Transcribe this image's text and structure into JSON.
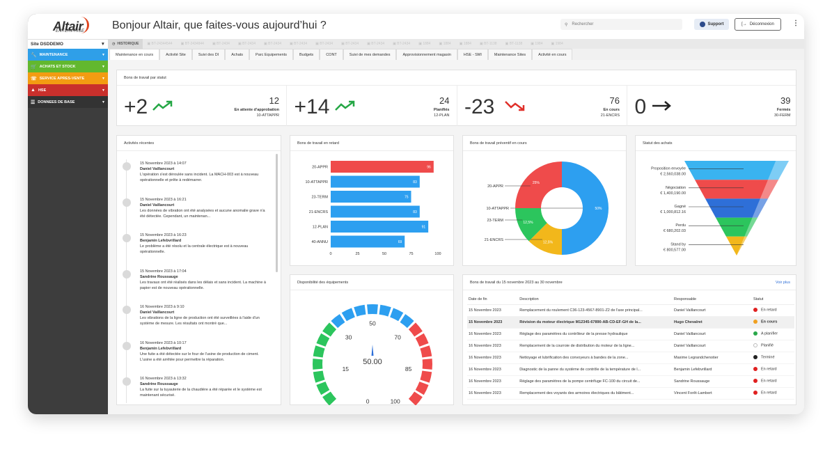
{
  "logo": {
    "name": "Altair",
    "sub": "ENTERPRISE"
  },
  "sidebar": {
    "site": "Site DSDDEMO",
    "items": [
      {
        "label": "MAINTENANCE",
        "color": "#2f9fe8",
        "icon": "wrench-icon"
      },
      {
        "label": "ACHATS ET STOCK",
        "color": "#62b82e",
        "icon": "cart-icon"
      },
      {
        "label": "SERVICE APRES-VENTE",
        "color": "#f39c12",
        "icon": "phone-icon"
      },
      {
        "label": "HSE",
        "color": "#c9302c",
        "icon": "warning-icon"
      },
      {
        "label": "DONNEES DE BASE",
        "color": "#333333",
        "icon": "database-icon"
      }
    ]
  },
  "header": {
    "title": "Bonjour Altair, que faites-vous aujourd’hui ?",
    "search_placeholder": "Rechercher",
    "support": "Support",
    "logout": "Déconnexion"
  },
  "history": {
    "label": "HISTORIQUE",
    "items": [
      "BT-24344544",
      "BT-2434844",
      "BT-2434",
      "BT-2434",
      "BT-2434",
      "BT-2434",
      "BT-2434",
      "BT-2434",
      "BT-2434",
      "BT-2434",
      "1884",
      "1884",
      "1884",
      "BT-1138",
      "BT-1138",
      "1984",
      "1984"
    ]
  },
  "tabs": [
    "Maintenance en cours",
    "Activité Site",
    "Suivi des DI",
    "Achats",
    "Parc Equipements",
    "Budgets",
    "CONT",
    "Suivi de mes demandes",
    "Approvisionnement magasin",
    "HSE - SMI",
    "Maintenance Sites",
    "Activité en cours"
  ],
  "status": {
    "title": "Bons de travail par statut",
    "items": [
      {
        "delta": "+2",
        "trend": "up",
        "count": "12",
        "label": "En attente d'approbation",
        "code": "10-ATTAPPR"
      },
      {
        "delta": "+14",
        "trend": "up",
        "count": "24",
        "label": "Planifiés",
        "code": "12-PLAN"
      },
      {
        "delta": "-23",
        "trend": "down",
        "count": "76",
        "label": "En cours",
        "code": "21-ENCRS"
      },
      {
        "delta": "0",
        "trend": "flat",
        "count": "39",
        "label": "Fermés",
        "code": "30-FERM"
      }
    ]
  },
  "activities": {
    "title": "Activités récentes",
    "items": [
      {
        "date": "15 Novembre 2023 à 14:07",
        "name": "Daniel Vaillancourt",
        "text": "L'opération s'est déroulée sans incident. La MACH-003 est à nouveau opérationnelle et prête à redémarrer."
      },
      {
        "date": "15 Novembre 2023 à 16:21",
        "name": "Daniel Vaillancourt",
        "text": "Les données de vibration ont été analysées et aucune anomalie grave n'a été détectée. Cependant, un maintenan..."
      },
      {
        "date": "15 Novembre 2023 à 16:23",
        "name": "Benjamin Lefebvrillard",
        "text": "Le problème a été résolu et la centrale électrique est à nouveau opérationnelle."
      },
      {
        "date": "15 Novembre 2023 à 17:04",
        "name": "Sandrine Roussauge",
        "text": "Les travaux ont été réalisés dans les délais et sans incident. La machine à papier est de nouveau opérationnelle."
      },
      {
        "date": "16 Novembre 2023 à 9:10",
        "name": "Daniel Vaillancourt",
        "text": "Les vibrations de la ligne de production ont été surveillées à l'aide d'un système de mesure. Les résultats ont montré que..."
      },
      {
        "date": "16 Novembre 2023 à 10:17",
        "name": "Benjamin Lefebvrillard",
        "text": "Une fuite a été détectée sur le four de l'usine de production de ciment. L'usine a été arrêtée pour permettre la réparation."
      },
      {
        "date": "16 Novembre 2023 à 13:32",
        "name": "Sandrine Roussauge",
        "text": "La fuite sur la tuyauterie de la chaudière a été réparée et le système est maintenant sécurisé."
      }
    ]
  },
  "chart_data": [
    {
      "type": "bar",
      "title": "Bons de travail en retard",
      "categories": [
        "20-APPR",
        "10-ATTAPPR",
        "23-TERM",
        "21-ENCRS",
        "12-PLAN",
        "40-ANNU"
      ],
      "values": [
        96,
        83,
        75,
        83,
        91,
        69
      ],
      "colors": [
        "#ef4b4b",
        "#2d9ff0",
        "#2d9ff0",
        "#2d9ff0",
        "#2d9ff0",
        "#2d9ff0"
      ],
      "xticks": [
        0,
        25,
        50,
        75,
        100
      ],
      "xlim": [
        0,
        100
      ]
    },
    {
      "type": "pie",
      "title": "Bons de travail préventif en cours",
      "slices": [
        {
          "label": "10-ATTAPPR",
          "value": 50,
          "text": "50%",
          "color": "#2d9ff0"
        },
        {
          "label": "21-ENCRS",
          "value": 12.5,
          "text": "12,5%",
          "color": "#f2b71b"
        },
        {
          "label": "23-TERM",
          "value": 12.5,
          "text": "12,5%",
          "color": "#2cc55d"
        },
        {
          "label": "20-APPR",
          "value": 25,
          "text": "25%",
          "color": "#ef4b4b"
        }
      ]
    },
    {
      "type": "funnel",
      "title": "Statut des achats",
      "stages": [
        {
          "label": "Proposition envoyée",
          "value": "€ 2,560,038.00",
          "color": "#3ab3f0"
        },
        {
          "label": "Négociation",
          "value": "€ 1,400,190.00",
          "color": "#ef4b4b"
        },
        {
          "label": "Gagné",
          "value": "€ 1,000,812.16",
          "color": "#2e6fd8"
        },
        {
          "label": "Perdu",
          "value": "€ 680,202.03",
          "color": "#2cc55d"
        },
        {
          "label": "Stand by",
          "value": "€ 800,577.00",
          "color": "#f2b71b"
        }
      ]
    },
    {
      "type": "gauge",
      "title": "Disponibilité des équipements",
      "value": 50,
      "value_label": "50.00",
      "min": 0,
      "max": 100,
      "ticks": [
        "0",
        "15",
        "30",
        "50",
        "70",
        "85",
        "100"
      ]
    }
  ],
  "work_orders": {
    "title": "Bons de travail du 15 novembre 2023 au 30 novembre",
    "link": "Voir plus",
    "columns": [
      "Date de fin",
      "Description",
      "Responsable",
      "Statut"
    ],
    "rows": [
      {
        "date": "15 Novembre 2023",
        "desc": "Remplacement du roulement C36-123-4567-8901-Z2 de l'axe principal...",
        "resp": "Daniel Vaillancourt",
        "status": "En retard",
        "color": "#e02020"
      },
      {
        "date": "15 Novembre 2023",
        "desc": "Révision du moteur électrique M12345-67890-AB-CD-EF-GH de la...",
        "resp": "Hugo Chevalret",
        "status": "En cours",
        "color": "#f0a020",
        "highlight": true
      },
      {
        "date": "16 Novembre 2023",
        "desc": "Réglage des paramètres du contrôleur de la presse hydraulique",
        "resp": "Daniel Vaillancourt",
        "status": "A planifier",
        "color": "#2aa84a"
      },
      {
        "date": "16 Novembre 2023",
        "desc": "Remplacement de la courroie de distribution du moteur de la ligne...",
        "resp": "Daniel Vaillancourt",
        "status": "Planifié",
        "color": "#ffffff"
      },
      {
        "date": "16 Novembre 2023",
        "desc": "Nettoyage et lubrification des convoyeurs à bandes de la zone...",
        "resp": "Maxime Legrandchenotier",
        "status": "Terminé",
        "color": "#222222"
      },
      {
        "date": "16 Novembre 2023",
        "desc": "Diagnostic de la panne du système de contrôle de la température de l...",
        "resp": "Benjamin Lefebvrillard",
        "status": "En retard",
        "color": "#e02020"
      },
      {
        "date": "16 Novembre 2023",
        "desc": "Réglage des paramètres de la pompe centrifuge FC-100 du circuit de...",
        "resp": "Sandrine Roussauge",
        "status": "En retard",
        "color": "#e02020"
      },
      {
        "date": "16 Novembre 2023",
        "desc": "Remplacement des voyants des armoires électriques du bâtiment...",
        "resp": "Vincent Forêt-Lambert",
        "status": "En retard",
        "color": "#e02020"
      }
    ]
  }
}
